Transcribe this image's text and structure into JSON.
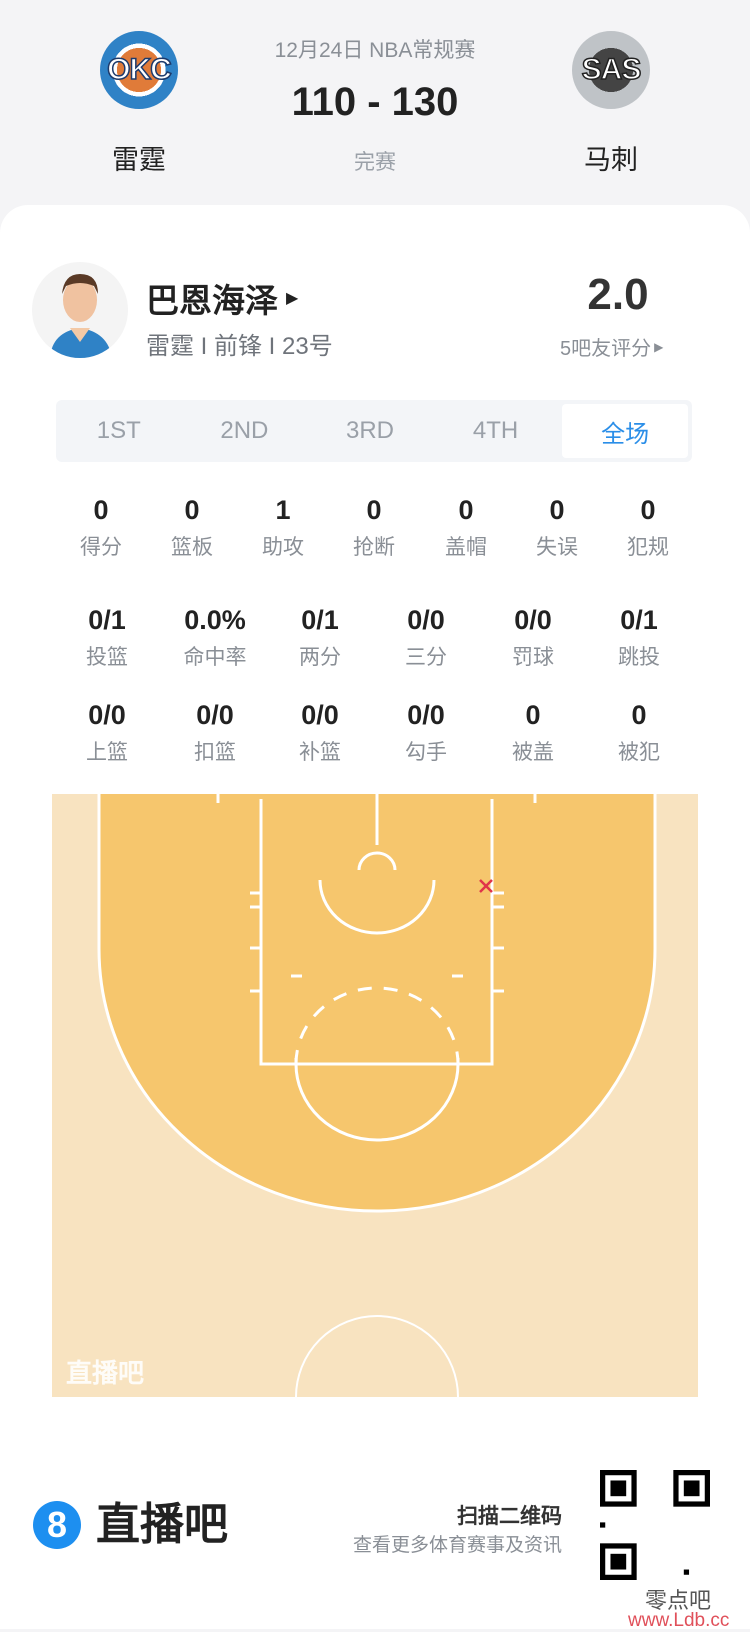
{
  "match": {
    "date_league": "12月24日 NBA常规赛",
    "score": "110 - 130",
    "status": "完赛",
    "home": {
      "name": "雷霆",
      "abbr": "OKC"
    },
    "away": {
      "name": "马刺",
      "abbr": "SAS"
    }
  },
  "player": {
    "name": "巴恩海泽",
    "info": "雷霆 I 前锋 I 23号",
    "rating": "2.0",
    "rating_label": "5吧友评分"
  },
  "tabs": [
    {
      "label": "1ST"
    },
    {
      "label": "2ND"
    },
    {
      "label": "3RD"
    },
    {
      "label": "4TH"
    },
    {
      "label": "全场",
      "active": true
    }
  ],
  "stats_row1": [
    {
      "v": "0",
      "l": "得分"
    },
    {
      "v": "0",
      "l": "篮板"
    },
    {
      "v": "1",
      "l": "助攻"
    },
    {
      "v": "0",
      "l": "抢断"
    },
    {
      "v": "0",
      "l": "盖帽"
    },
    {
      "v": "0",
      "l": "失误"
    },
    {
      "v": "0",
      "l": "犯规"
    }
  ],
  "stats_row2": [
    {
      "v": "0/1",
      "l": "投篮"
    },
    {
      "v": "0.0%",
      "l": "命中率"
    },
    {
      "v": "0/1",
      "l": "两分"
    },
    {
      "v": "0/0",
      "l": "三分"
    },
    {
      "v": "0/0",
      "l": "罚球"
    },
    {
      "v": "0/1",
      "l": "跳投"
    }
  ],
  "stats_row3": [
    {
      "v": "0/0",
      "l": "上篮"
    },
    {
      "v": "0/0",
      "l": "扣篮"
    },
    {
      "v": "0/0",
      "l": "补篮"
    },
    {
      "v": "0/0",
      "l": "勾手"
    },
    {
      "v": "0",
      "l": "被盖"
    },
    {
      "v": "0",
      "l": "被犯"
    }
  ],
  "court": {
    "watermark": "直播吧",
    "shots": [
      {
        "result": "miss",
        "marker": "x",
        "color": "#e0334a"
      }
    ]
  },
  "footer": {
    "brand": "直播吧",
    "brand_icon": "8",
    "scan_title": "扫描二维码",
    "scan_sub": "查看更多体育赛事及资讯",
    "site_watermark": "零点吧",
    "site_url": "www.Ldb.cc"
  },
  "colors": {
    "accent": "#2a8ee8",
    "court_inner": "#f6c66d",
    "court_outer": "#f8e3c0"
  }
}
